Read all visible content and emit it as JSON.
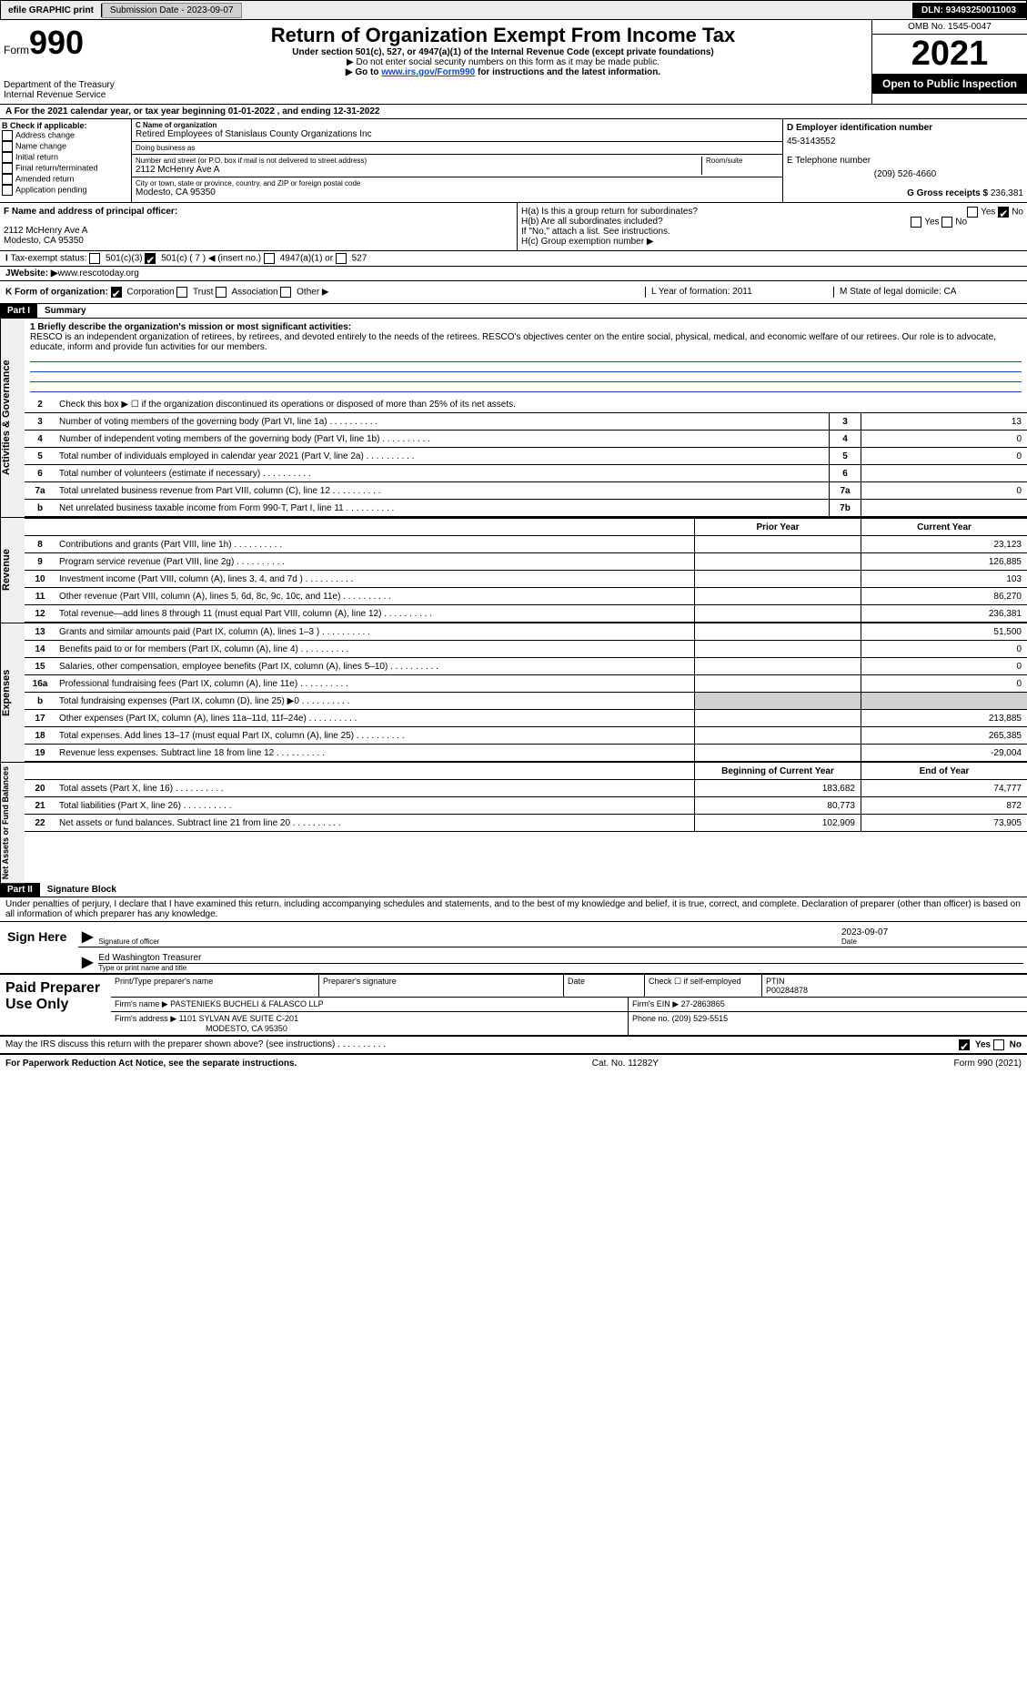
{
  "topbar": {
    "efile": "efile GRAPHIC print",
    "submission_label": "Submission Date - 2023-09-07",
    "dln": "DLN: 93493250011003"
  },
  "header": {
    "form_label": "Form",
    "form_number": "990",
    "dept": "Department of the Treasury",
    "irs": "Internal Revenue Service",
    "title": "Return of Organization Exempt From Income Tax",
    "sub1": "Under section 501(c), 527, or 4947(a)(1) of the Internal Revenue Code (except private foundations)",
    "sub2": "▶ Do not enter social security numbers on this form as it may be made public.",
    "sub3_pre": "▶ Go to ",
    "sub3_link": "www.irs.gov/Form990",
    "sub3_post": " for instructions and the latest information.",
    "omb": "OMB No. 1545-0047",
    "year": "2021",
    "open": "Open to Public Inspection"
  },
  "period": {
    "text_a": "For the 2021 calendar year, or tax year beginning 01-01-2022    , and ending 12-31-2022"
  },
  "box_b": {
    "label": "B Check if applicable:",
    "items": [
      "Address change",
      "Name change",
      "Initial return",
      "Final return/terminated",
      "Amended return",
      "Application pending"
    ]
  },
  "box_c": {
    "name_label": "C Name of organization",
    "name": "Retired Employees of Stanislaus County Organizations Inc",
    "dba_label": "Doing business as",
    "dba": "",
    "addr_label": "Number and street (or P.O. box if mail is not delivered to street address)",
    "room_label": "Room/suite",
    "addr": "2112 McHenry Ave A",
    "city_label": "City or town, state or province, country, and ZIP or foreign postal code",
    "city": "Modesto, CA  95350"
  },
  "box_d": {
    "label": "D Employer identification number",
    "value": "45-3143552"
  },
  "box_e": {
    "label": "E Telephone number",
    "value": "(209) 526-4660"
  },
  "box_g": {
    "label": "G Gross receipts $",
    "value": "236,381"
  },
  "box_f": {
    "label": "F  Name and address of principal officer:",
    "addr1": "2112 McHenry Ave A",
    "addr2": "Modesto, CA  95350"
  },
  "box_h": {
    "ha": "H(a)  Is this a group return for subordinates?",
    "hb": "H(b)  Are all subordinates included?",
    "hb_note": "If \"No,\" attach a list. See instructions.",
    "hc": "H(c)  Group exemption number ▶",
    "yes": "Yes",
    "no": "No"
  },
  "box_i": {
    "label": "Tax-exempt status:",
    "o1": "501(c)(3)",
    "o2": "501(c) ( 7 ) ◀ (insert no.)",
    "o3": "4947(a)(1) or",
    "o4": "527"
  },
  "box_j": {
    "label": "Website: ▶",
    "value": "www.rescotoday.org"
  },
  "box_k": {
    "label": "K Form of organization:",
    "o1": "Corporation",
    "o2": "Trust",
    "o3": "Association",
    "o4": "Other ▶"
  },
  "box_l": {
    "label": "L Year of formation: 2011"
  },
  "box_m": {
    "label": "M State of legal domicile: CA"
  },
  "part1": {
    "header": "Part I",
    "title": "Summary",
    "line1_label": "1  Briefly describe the organization's mission or most significant activities:",
    "mission": "RESCO is an independent organization of retirees, by retirees, and devoted entirely to the needs of the retirees. RESCO's objectives center on the entire social, physical, medical, and economic welfare of our retirees. Our role is to advocate, educate, inform and provide fun activities for our members.",
    "line2": "Check this box ▶ ☐  if the organization discontinued its operations or disposed of more than 25% of its net assets.",
    "vtab1": "Activities & Governance",
    "vtab2": "Revenue",
    "vtab3": "Expenses",
    "vtab4": "Net Assets or Fund Balances",
    "rows_gov": [
      {
        "n": "3",
        "d": "Number of voting members of the governing body (Part VI, line 1a)",
        "b": "3",
        "v": "13"
      },
      {
        "n": "4",
        "d": "Number of independent voting members of the governing body (Part VI, line 1b)",
        "b": "4",
        "v": "0"
      },
      {
        "n": "5",
        "d": "Total number of individuals employed in calendar year 2021 (Part V, line 2a)",
        "b": "5",
        "v": "0"
      },
      {
        "n": "6",
        "d": "Total number of volunteers (estimate if necessary)",
        "b": "6",
        "v": ""
      },
      {
        "n": "7a",
        "d": "Total unrelated business revenue from Part VIII, column (C), line 12",
        "b": "7a",
        "v": "0"
      },
      {
        "n": "b",
        "d": "Net unrelated business taxable income from Form 990-T, Part I, line 11",
        "b": "7b",
        "v": ""
      }
    ],
    "prior_year": "Prior Year",
    "current_year": "Current Year",
    "rows_rev": [
      {
        "n": "8",
        "d": "Contributions and grants (Part VIII, line 1h)",
        "p": "",
        "c": "23,123"
      },
      {
        "n": "9",
        "d": "Program service revenue (Part VIII, line 2g)",
        "p": "",
        "c": "126,885"
      },
      {
        "n": "10",
        "d": "Investment income (Part VIII, column (A), lines 3, 4, and 7d )",
        "p": "",
        "c": "103"
      },
      {
        "n": "11",
        "d": "Other revenue (Part VIII, column (A), lines 5, 6d, 8c, 9c, 10c, and 11e)",
        "p": "",
        "c": "86,270"
      },
      {
        "n": "12",
        "d": "Total revenue—add lines 8 through 11 (must equal Part VIII, column (A), line 12)",
        "p": "",
        "c": "236,381"
      }
    ],
    "rows_exp": [
      {
        "n": "13",
        "d": "Grants and similar amounts paid (Part IX, column (A), lines 1–3 )",
        "p": "",
        "c": "51,500"
      },
      {
        "n": "14",
        "d": "Benefits paid to or for members (Part IX, column (A), line 4)",
        "p": "",
        "c": "0"
      },
      {
        "n": "15",
        "d": "Salaries, other compensation, employee benefits (Part IX, column (A), lines 5–10)",
        "p": "",
        "c": "0"
      },
      {
        "n": "16a",
        "d": "Professional fundraising fees (Part IX, column (A), line 11e)",
        "p": "",
        "c": "0"
      },
      {
        "n": "b",
        "d": "Total fundraising expenses (Part IX, column (D), line 25) ▶0",
        "p": "shade",
        "c": "shade"
      },
      {
        "n": "17",
        "d": "Other expenses (Part IX, column (A), lines 11a–11d, 11f–24e)",
        "p": "",
        "c": "213,885"
      },
      {
        "n": "18",
        "d": "Total expenses. Add lines 13–17 (must equal Part IX, column (A), line 25)",
        "p": "",
        "c": "265,385"
      },
      {
        "n": "19",
        "d": "Revenue less expenses. Subtract line 18 from line 12",
        "p": "",
        "c": "-29,004"
      }
    ],
    "beg_year": "Beginning of Current Year",
    "end_year": "End of Year",
    "rows_net": [
      {
        "n": "20",
        "d": "Total assets (Part X, line 16)",
        "p": "183,682",
        "c": "74,777"
      },
      {
        "n": "21",
        "d": "Total liabilities (Part X, line 26)",
        "p": "80,773",
        "c": "872"
      },
      {
        "n": "22",
        "d": "Net assets or fund balances. Subtract line 21 from line 20",
        "p": "102,909",
        "c": "73,905"
      }
    ]
  },
  "part2": {
    "header": "Part II",
    "title": "Signature Block",
    "decl": "Under penalties of perjury, I declare that I have examined this return, including accompanying schedules and statements, and to the best of my knowledge and belief, it is true, correct, and complete. Declaration of preparer (other than officer) is based on all information of which preparer has any knowledge."
  },
  "sign": {
    "here": "Sign Here",
    "sig_officer": "Signature of officer",
    "date": "Date",
    "date_val": "2023-09-07",
    "name": "Ed Washington Treasurer",
    "name_label": "Type or print name and title"
  },
  "prep": {
    "title": "Paid Preparer Use Only",
    "c1": "Print/Type preparer's name",
    "c2": "Preparer's signature",
    "c3": "Date",
    "c4": "Check ☐ if self-employed",
    "c5_label": "PTIN",
    "c5": "P00284878",
    "firm_label": "Firm's name    ▶",
    "firm": "PASTENIEKS BUCHELI & FALASCO LLP",
    "ein_label": "Firm's EIN ▶",
    "ein": "27-2863865",
    "addr_label": "Firm's address ▶",
    "addr1": "1101 SYLVAN AVE SUITE C-201",
    "addr2": "MODESTO, CA  95350",
    "phone_label": "Phone no.",
    "phone": "(209) 529-5515"
  },
  "discuss": {
    "q": "May the IRS discuss this return with the preparer shown above? (see instructions)",
    "yes": "Yes",
    "no": "No"
  },
  "footer": {
    "left": "For Paperwork Reduction Act Notice, see the separate instructions.",
    "mid": "Cat. No. 11282Y",
    "right": "Form 990 (2021)"
  },
  "colors": {
    "link": "#0a4bcc",
    "shade": "#d0d0d0"
  }
}
